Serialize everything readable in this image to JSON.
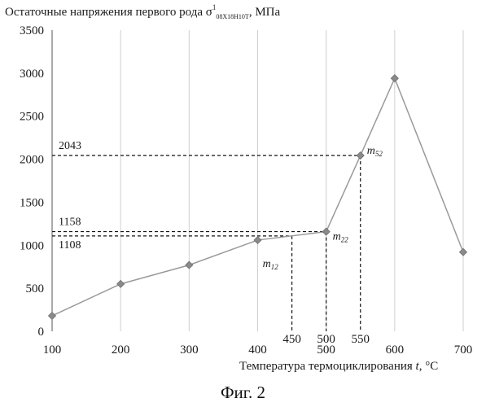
{
  "chart_data": {
    "type": "line",
    "title": "Остаточные напряжения первого рода σ",
    "title_sup": "1",
    "title_sub": "08Х18Н10Т",
    "title_unit": ", МПа",
    "xlabel": "Температура термоциклирования",
    "xlabel_var": "t",
    "xlabel_unit": ", °С",
    "xlim": [
      100,
      700
    ],
    "ylim": [
      0,
      3500
    ],
    "x_ticks": [
      100,
      200,
      300,
      400,
      500,
      600,
      700
    ],
    "y_ticks": [
      0,
      500,
      1000,
      1500,
      2000,
      2500,
      3000,
      3500
    ],
    "grid": "vertical",
    "series": [
      {
        "x": [
          100,
          200,
          300,
          400,
          500,
          550,
          600,
          700
        ],
        "y": [
          180,
          550,
          770,
          1060,
          1158,
          2043,
          2940,
          920
        ],
        "color": "#9a9a9a",
        "marker": "diamond"
      }
    ],
    "reference_lines": {
      "horizontal": [
        {
          "y": 2043,
          "label": "2043",
          "x_to": 550
        },
        {
          "y": 1158,
          "label": "1158",
          "x_to": 500
        },
        {
          "y": 1108,
          "label": "1108",
          "x_to": 450
        }
      ],
      "vertical": [
        {
          "x": 450,
          "label": "450",
          "y_from": 1108
        },
        {
          "x": 500,
          "label": "500",
          "y_from": 1158
        },
        {
          "x": 550,
          "label": "550",
          "y_from": 2043
        }
      ]
    },
    "point_labels": [
      {
        "text": "m",
        "sub": "12",
        "x": 450,
        "y": 1108
      },
      {
        "text": "m",
        "sub": "22",
        "x": 500,
        "y": 1158
      },
      {
        "text": "m",
        "sub": "52",
        "x": 550,
        "y": 2043
      }
    ]
  },
  "caption": "Фиг. 2"
}
